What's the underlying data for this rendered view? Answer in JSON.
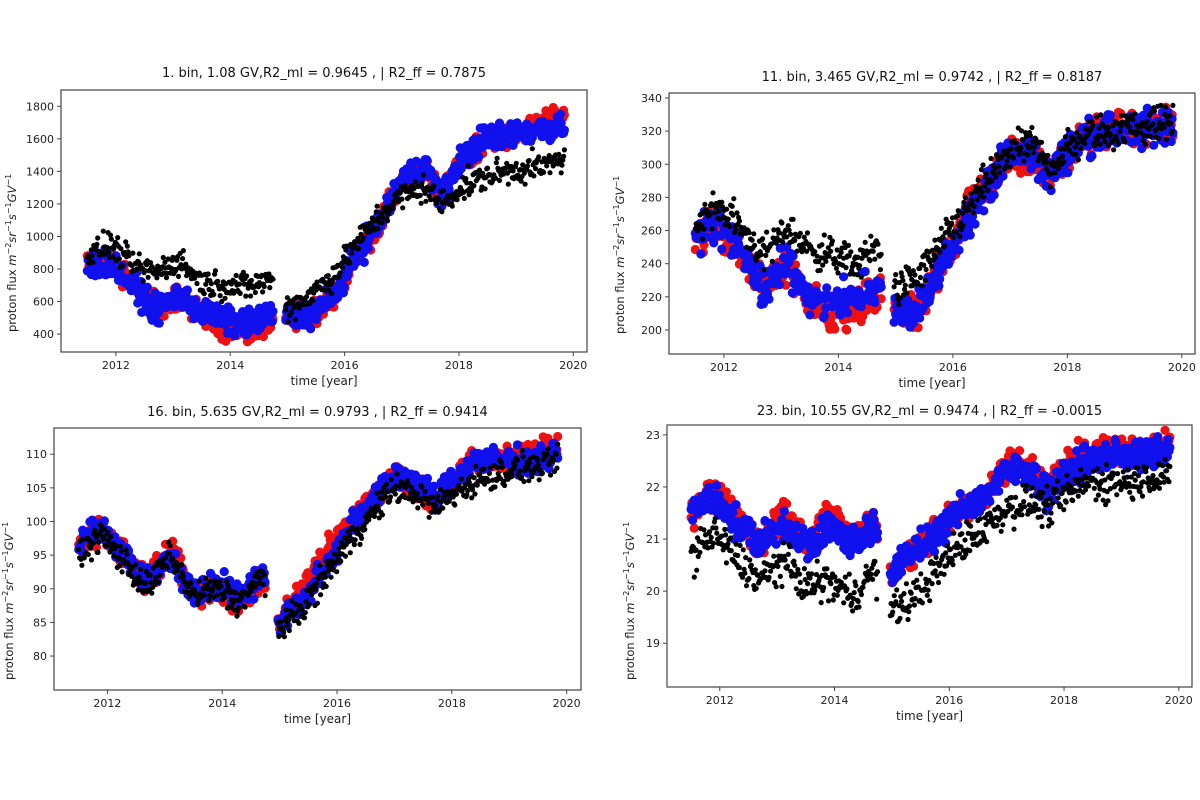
{
  "colors": {
    "observed": "#000000",
    "model_ml": "#ee1111",
    "model_blue": "#1111ee",
    "axis": "#444444"
  },
  "chart_data": [
    {
      "type": "scatter",
      "title": "1. bin, 1.08 GV,R2_ml = 0.9645 , | R2_ff = 0.7875",
      "xlabel": "time [year]",
      "ylabel_base": "proton flux m",
      "ylabel_parts": [
        "proton flux ",
        "m",
        "−2",
        "sr",
        "−1",
        "s",
        "−1",
        "GV",
        "−1"
      ],
      "xlim": [
        2011.04,
        2020.24
      ],
      "ylim": [
        290,
        1900
      ],
      "xticks": [
        2012,
        2014,
        2016,
        2018,
        2020
      ],
      "xtick_labels": [
        "2012",
        "2014",
        "2016",
        "2018",
        "2020"
      ],
      "yticks": [
        400,
        600,
        800,
        1000,
        1200,
        1400,
        1600,
        1800
      ],
      "ytick_labels": [
        "400",
        "600",
        "800",
        "1000",
        "1200",
        "1400",
        "1600",
        "1800"
      ],
      "trend": {
        "x": [
          2011.5,
          2011.9,
          2012.3,
          2012.7,
          2013.1,
          2013.5,
          2013.9,
          2014.3,
          2014.7,
          2015.0,
          2015.4,
          2015.8,
          2016.2,
          2016.6,
          2017.0,
          2017.4,
          2017.7,
          2018.0,
          2018.4,
          2018.8,
          2019.2,
          2019.5,
          2019.8
        ],
        "observed": [
          880,
          950,
          820,
          780,
          850,
          720,
          700,
          690,
          740,
          560,
          640,
          760,
          950,
          1120,
          1250,
          1300,
          1200,
          1290,
          1360,
          1400,
          1420,
          1430,
          1480
        ],
        "model_ml": [
          850,
          860,
          720,
          560,
          620,
          520,
          420,
          400,
          480,
          520,
          500,
          620,
          880,
          1080,
          1350,
          1420,
          1250,
          1450,
          1580,
          1620,
          1680,
          1720,
          1740
        ],
        "model_blue": [
          820,
          840,
          700,
          540,
          640,
          540,
          480,
          460,
          520,
          500,
          520,
          630,
          880,
          1080,
          1350,
          1440,
          1230,
          1460,
          1590,
          1620,
          1650,
          1660,
          1690
        ]
      },
      "spread": {
        "observed": 70,
        "model_ml": 60,
        "model_blue": 70
      }
    },
    {
      "type": "scatter",
      "title": "11. bin, 3.465 GV,R2_ml = 0.9742 , | R2_ff = 0.8187",
      "xlabel": "time [year]",
      "ylabel_parts": [
        "proton flux ",
        "m",
        "−2",
        "sr",
        "−1",
        "s",
        "−1",
        "GV",
        "−1"
      ],
      "xlim": [
        2011.04,
        2020.23
      ],
      "ylim": [
        185.5,
        343
      ],
      "xticks": [
        2012,
        2014,
        2016,
        2018,
        2020
      ],
      "xtick_labels": [
        "2012",
        "2014",
        "2016",
        "2018",
        "2020"
      ],
      "yticks": [
        200,
        220,
        240,
        260,
        280,
        300,
        320,
        340
      ],
      "ytick_labels": [
        "200",
        "220",
        "240",
        "260",
        "280",
        "300",
        "320",
        "340"
      ],
      "trend": {
        "x": [
          2011.5,
          2011.9,
          2012.3,
          2012.7,
          2013.1,
          2013.5,
          2013.9,
          2014.3,
          2014.7,
          2015.0,
          2015.4,
          2015.8,
          2016.2,
          2016.6,
          2017.0,
          2017.4,
          2017.7,
          2018.0,
          2018.4,
          2018.8,
          2019.2,
          2019.5,
          2019.8
        ],
        "observed": [
          262,
          275,
          262,
          245,
          262,
          248,
          245,
          240,
          250,
          225,
          232,
          252,
          270,
          290,
          308,
          312,
          298,
          310,
          318,
          320,
          323,
          324,
          326
        ],
        "model_ml": [
          255,
          262,
          245,
          225,
          240,
          218,
          210,
          212,
          225,
          212,
          210,
          240,
          268,
          288,
          305,
          302,
          290,
          308,
          318,
          320,
          322,
          324,
          327
        ],
        "model_blue": [
          255,
          265,
          248,
          222,
          242,
          218,
          220,
          218,
          228,
          210,
          210,
          238,
          266,
          286,
          306,
          306,
          292,
          308,
          318,
          320,
          320,
          322,
          325
        ]
      },
      "spread": {
        "observed": 9,
        "model_ml": 9,
        "model_blue": 9
      }
    },
    {
      "type": "scatter",
      "title": "16. bin, 5.635 GV,R2_ml = 0.9793 , | R2_ff = 0.9414",
      "xlabel": "time [year]",
      "ylabel_parts": [
        "proton flux ",
        "m",
        "−2",
        "sr",
        "−1",
        "s",
        "−1",
        "GV",
        "−1"
      ],
      "xlim": [
        2011.07,
        2020.25
      ],
      "ylim": [
        74.95,
        113.9
      ],
      "xticks": [
        2012,
        2014,
        2016,
        2018,
        2020
      ],
      "xtick_labels": [
        "2012",
        "2014",
        "2016",
        "2018",
        "2020"
      ],
      "yticks": [
        80,
        85,
        90,
        95,
        100,
        105,
        110
      ],
      "ytick_labels": [
        "80",
        "85",
        "90",
        "95",
        "100",
        "105",
        "110"
      ],
      "trend": {
        "x": [
          2011.5,
          2011.9,
          2012.3,
          2012.7,
          2013.1,
          2013.5,
          2013.9,
          2014.3,
          2014.7,
          2015.0,
          2015.4,
          2015.8,
          2016.2,
          2016.6,
          2017.0,
          2017.4,
          2017.7,
          2018.0,
          2018.4,
          2018.8,
          2019.2,
          2019.5,
          2019.8
        ],
        "observed": [
          95,
          98,
          94,
          90,
          95,
          89,
          90,
          88,
          92,
          84,
          87,
          92,
          97,
          101,
          105,
          104,
          102,
          104,
          106,
          107,
          108,
          108,
          109
        ],
        "model_ml": [
          96,
          99,
          95,
          91,
          96,
          89,
          90,
          88,
          92,
          85,
          90,
          95,
          100,
          103,
          107,
          105,
          103,
          106,
          109,
          109,
          110,
          110,
          111
        ],
        "model_blue": [
          97,
          99,
          95,
          91,
          95,
          89,
          91,
          89,
          92,
          85,
          88,
          93,
          99,
          103,
          107,
          106,
          103,
          106,
          109,
          109,
          109,
          109,
          110
        ]
      },
      "spread": {
        "observed": 1.8,
        "model_ml": 1.6,
        "model_blue": 1.6
      }
    },
    {
      "type": "scatter",
      "title": "23. bin, 10.55 GV,R2_ml = 0.9474 , | R2_ff = -0.0015",
      "xlabel": "time [year]",
      "ylabel_parts": [
        "proton flux ",
        "m",
        "−2",
        "sr",
        "−1",
        "s",
        "−1",
        "GV",
        "−1"
      ],
      "xlim": [
        2011.08,
        2020.23
      ],
      "ylim": [
        18.16,
        23.19
      ],
      "xticks": [
        2012,
        2014,
        2016,
        2018,
        2020
      ],
      "xtick_labels": [
        "2012",
        "2014",
        "2016",
        "2018",
        "2020"
      ],
      "yticks": [
        19,
        20,
        21,
        22,
        23
      ],
      "ytick_labels": [
        "19",
        "20",
        "21",
        "22",
        "23"
      ],
      "trend": {
        "x": [
          2011.5,
          2011.9,
          2012.3,
          2012.7,
          2013.1,
          2013.5,
          2013.9,
          2014.3,
          2014.7,
          2015.0,
          2015.4,
          2015.8,
          2016.2,
          2016.6,
          2017.0,
          2017.4,
          2017.7,
          2018.0,
          2018.4,
          2018.8,
          2019.2,
          2019.5,
          2019.8
        ],
        "observed": [
          20.7,
          21.1,
          20.6,
          20.2,
          20.6,
          20.1,
          20.2,
          19.9,
          20.4,
          19.6,
          19.9,
          20.4,
          20.9,
          21.2,
          21.6,
          21.7,
          21.6,
          21.8,
          22.1,
          22.1,
          22.1,
          22.2,
          22.3
        ],
        "model_ml": [
          21.5,
          21.9,
          21.4,
          20.9,
          21.5,
          20.9,
          21.4,
          21.0,
          21.3,
          20.4,
          20.8,
          21.2,
          21.6,
          21.8,
          22.4,
          22.4,
          22.0,
          22.3,
          22.6,
          22.7,
          22.7,
          22.7,
          22.8
        ],
        "model_blue": [
          21.5,
          21.8,
          21.3,
          20.9,
          21.3,
          20.9,
          21.2,
          21.0,
          21.2,
          20.3,
          20.8,
          21.1,
          21.6,
          21.8,
          22.3,
          22.3,
          21.9,
          22.2,
          22.5,
          22.6,
          22.6,
          22.6,
          22.7
        ]
      },
      "spread": {
        "observed": 0.3,
        "model_ml": 0.25,
        "model_blue": 0.25
      }
    }
  ]
}
